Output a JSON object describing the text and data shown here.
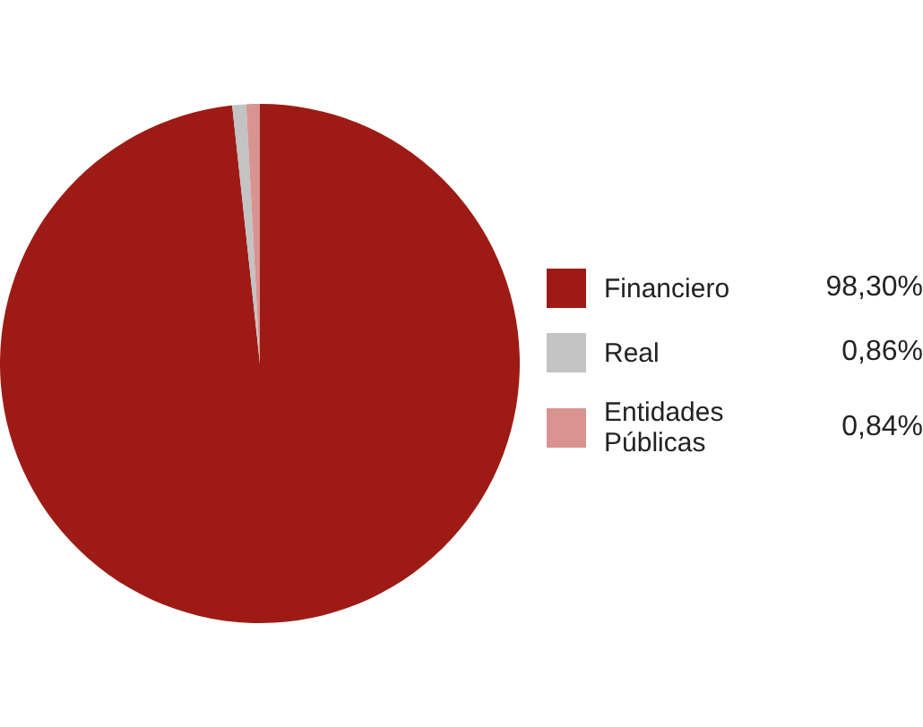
{
  "chart_data": {
    "type": "pie",
    "categories": [
      "Financiero",
      "Real",
      "Entidades Públicas"
    ],
    "values": [
      98.3,
      0.86,
      0.84
    ],
    "colors": [
      "#9e1b15",
      "#c3c3c3",
      "#d99390"
    ],
    "value_labels": [
      "98,30%",
      "0,86%",
      "0,84%"
    ],
    "legend": "right"
  }
}
